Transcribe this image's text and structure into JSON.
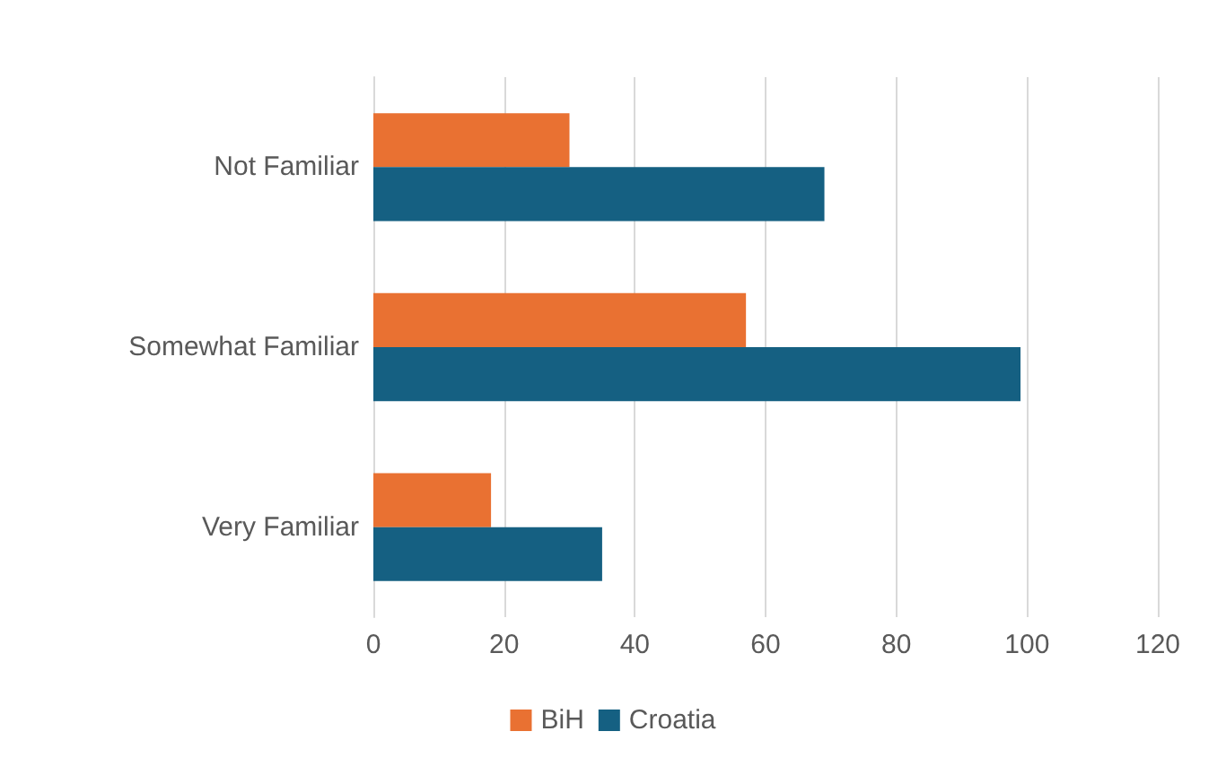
{
  "chart_data": {
    "type": "bar",
    "orientation": "horizontal",
    "categories": [
      "Not Familiar",
      "Somewhat Familiar",
      "Very Familiar"
    ],
    "series": [
      {
        "name": "BiH",
        "color": "#e97132",
        "values": [
          30,
          57,
          18
        ]
      },
      {
        "name": "Croatia",
        "color": "#156082",
        "values": [
          69,
          99,
          35
        ]
      }
    ],
    "xlim": [
      0,
      120
    ],
    "xticks": [
      0,
      20,
      40,
      60,
      80,
      100,
      120
    ],
    "grid": "x",
    "legend": "bottom"
  }
}
